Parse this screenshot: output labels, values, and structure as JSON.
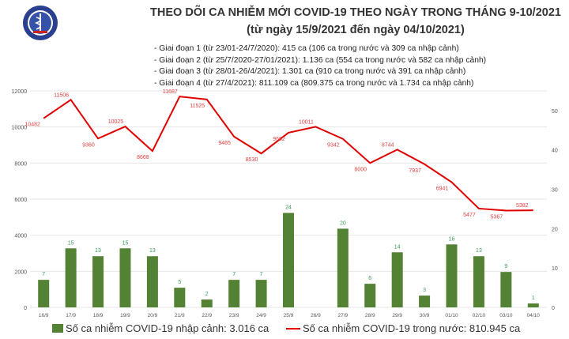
{
  "header": {
    "title": "THEO DÕI CA NHIỄM MỚI COVID-19 THEO NGÀY TRONG THÁNG 9-10/2021",
    "subtitle": "(từ ngày 15/9/2021 đến ngày 04/10/2021)",
    "notes": [
      "- Giai đoạn 1 (từ 23/01-24/7/2020): 415 ca (106 ca trong nước và 309 ca nhập cảnh)",
      "- Giai đoạn 2 (từ 25/7/2020-27/01/2021): 1.136 ca (554 ca trong nước và 582 ca nhập cảnh)",
      "- Giai đoạn 3 (từ 28/01-26/4/2021): 1.301 ca (910 ca trong nước và 391 ca nhập cảnh)",
      "- Giai đoạn 4 (từ 27/4/2021): 811.109 ca (809.375 ca trong nước và 1.734 ca nhập cảnh)"
    ],
    "logo_text": "BỘ Y TẾ MINISTRY OF HEALTH"
  },
  "chart_data": {
    "type": "bar+line",
    "categories": [
      "16/9",
      "17/9",
      "18/9",
      "19/9",
      "20/9",
      "21/9",
      "22/9",
      "23/9",
      "24/9",
      "25/9",
      "26/9",
      "27/9",
      "28/9",
      "29/9",
      "30/9",
      "01/10",
      "02/10",
      "03/10",
      "04/10"
    ],
    "series": [
      {
        "name": "Số ca nhiễm COVID-19 nhập cảnh: 3.016 ca",
        "type": "bar",
        "axis": "right",
        "color": "#548235",
        "label_color": "#3a9a5a",
        "values": [
          7,
          15,
          13,
          15,
          13,
          5,
          2,
          7,
          7,
          24,
          0,
          20,
          6,
          14,
          3,
          16,
          13,
          9,
          1
        ]
      },
      {
        "name": "Số ca nhiễm COVID-19 trong nước: 810.945 ca",
        "type": "line",
        "axis": "left",
        "color": "#e00000",
        "label_color": "#e04040",
        "values": [
          10482,
          11506,
          9360,
          10025,
          8668,
          11687,
          11525,
          9465,
          8530,
          9682,
          10011,
          9342,
          8000,
          8744,
          7937,
          6941,
          5477,
          5367,
          5382
        ]
      }
    ],
    "left_axis": {
      "ylim": [
        0,
        12000
      ],
      "ticks": [
        0,
        2000,
        4000,
        6000,
        8000,
        10000,
        12000
      ]
    },
    "right_axis": {
      "ylim": [
        0,
        55
      ],
      "ticks": [
        0,
        10,
        20,
        30,
        40,
        50
      ]
    },
    "grid": true,
    "legend": "bottom"
  }
}
